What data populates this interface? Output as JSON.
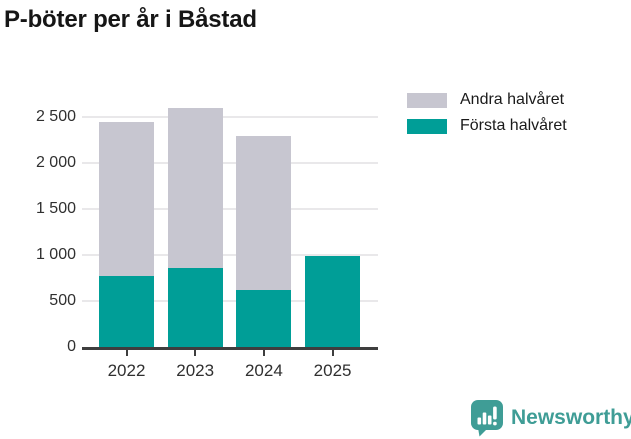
{
  "title": "P-böter per år i Båstad",
  "chart_data": {
    "type": "bar",
    "stacked": true,
    "categories": [
      "2022",
      "2023",
      "2024",
      "2025"
    ],
    "series": [
      {
        "name": "Första halvåret",
        "color": "#009e97",
        "values": [
          770,
          860,
          620,
          990
        ]
      },
      {
        "name": "Andra halvåret",
        "color": "#c7c6d0",
        "values": [
          1680,
          1740,
          1670,
          0
        ]
      }
    ],
    "totals": [
      2450,
      2600,
      2290,
      990
    ],
    "title": "P-böter per år i Båstad",
    "xlabel": "",
    "ylabel": "",
    "ylim": [
      0,
      2700
    ],
    "yticks": [
      0,
      500,
      1000,
      1500,
      2000,
      2500
    ],
    "ytick_labels": [
      "0",
      "500",
      "1 000",
      "1 500",
      "2 000",
      "2 500"
    ],
    "grid": true,
    "legend_position": "top-right",
    "legend_order": [
      "Andra halvåret",
      "Första halvåret"
    ]
  },
  "legend": {
    "items": [
      {
        "label": "Andra halvåret",
        "color": "#c7c6d0"
      },
      {
        "label": "Första halvåret",
        "color": "#009e97"
      }
    ]
  },
  "footer": {
    "brand": "Newsworthy",
    "logo_icon": "speech-bubble-bar-chart-icon",
    "brand_color": "#3f9d96"
  },
  "colors": {
    "first_half": "#009e97",
    "second_half": "#c7c6d0",
    "axis": "#3e3e3e",
    "gridline": "#e9e8ea",
    "title_text": "#161616",
    "tick_text": "#303030"
  }
}
